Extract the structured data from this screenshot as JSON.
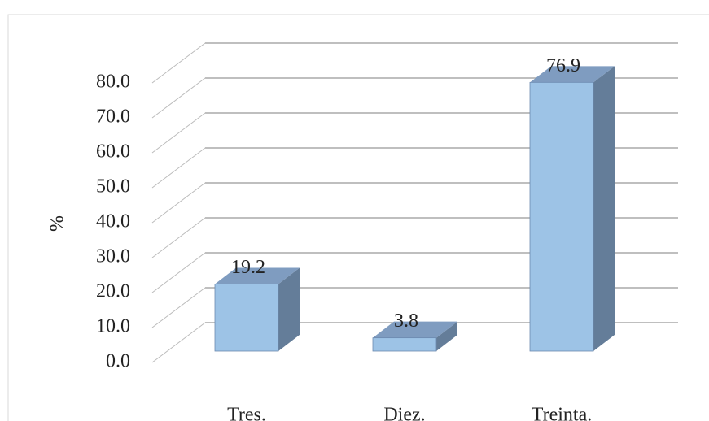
{
  "chart_data": {
    "type": "bar3d",
    "y_label": "%",
    "categories": [
      "Tres.",
      "Diez.",
      "Treinta."
    ],
    "values": [
      19.2,
      3.8,
      76.9
    ],
    "value_labels": [
      "19.2",
      "3.8",
      "76.9"
    ],
    "color": "#9dc3e6",
    "ylim": [
      0,
      80
    ],
    "yticks": [
      {
        "value": 0,
        "label": "0.0"
      },
      {
        "value": 10,
        "label": "10.0"
      },
      {
        "value": 20,
        "label": "20.0"
      },
      {
        "value": 30,
        "label": "30.0"
      },
      {
        "value": 40,
        "label": "40.0"
      },
      {
        "value": 50,
        "label": "50.0"
      },
      {
        "value": 60,
        "label": "60.0"
      },
      {
        "value": 70,
        "label": "70.0"
      },
      {
        "value": 80,
        "label": "80.0"
      }
    ],
    "grid": true
  }
}
